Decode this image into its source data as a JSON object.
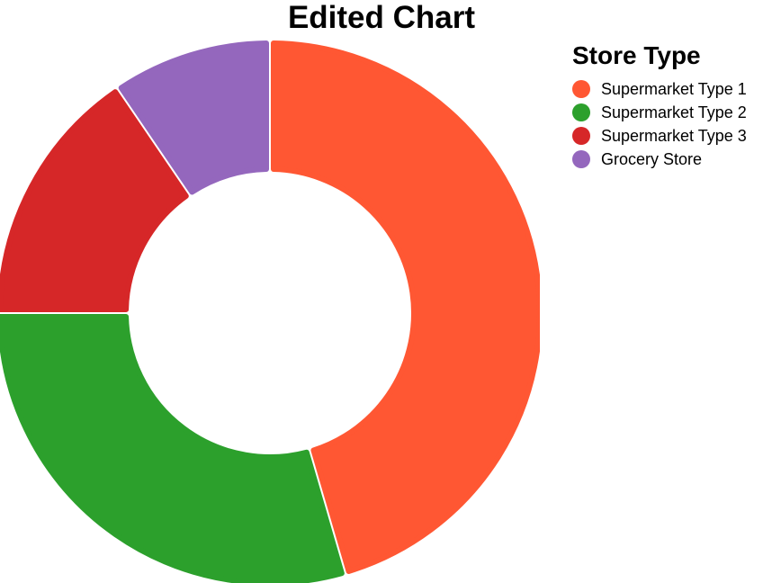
{
  "chart_data": {
    "type": "pie",
    "title": "Edited Chart",
    "legend_title": "Store Type",
    "legend_position": "right",
    "donut": true,
    "categories": [
      "Supermarket Type 1",
      "Supermarket Type 2",
      "Supermarket Type 3",
      "Grocery Store"
    ],
    "values": [
      45.5,
      29.5,
      15.5,
      9.5
    ],
    "colors": [
      "#ff5733",
      "#2ca02c",
      "#d62728",
      "#9467bd"
    ]
  }
}
